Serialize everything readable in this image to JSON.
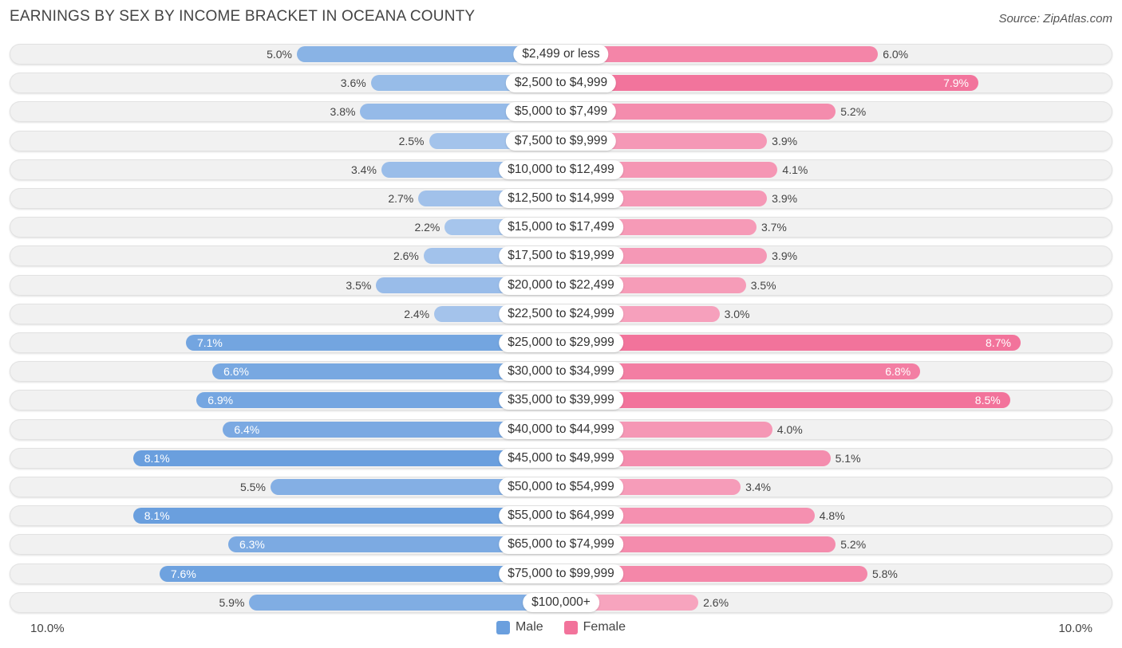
{
  "title": "EARNINGS BY SEX BY INCOME BRACKET IN OCEANA COUNTY",
  "source": "Source: ZipAtlas.com",
  "colors": {
    "male_light": "#a8c6ec",
    "male_dark": "#6a9fde",
    "female_light": "#f7a9c2",
    "female_dark": "#f2739b"
  },
  "chart_data": {
    "type": "bar",
    "orientation": "horizontal-diverging",
    "title": "EARNINGS BY SEX BY INCOME BRACKET IN OCEANA COUNTY",
    "categories": [
      "$2,499 or less",
      "$2,500 to $4,999",
      "$5,000 to $7,499",
      "$7,500 to $9,999",
      "$10,000 to $12,499",
      "$12,500 to $14,999",
      "$15,000 to $17,499",
      "$17,500 to $19,999",
      "$20,000 to $22,499",
      "$22,500 to $24,999",
      "$25,000 to $29,999",
      "$30,000 to $34,999",
      "$35,000 to $39,999",
      "$40,000 to $44,999",
      "$45,000 to $49,999",
      "$50,000 to $54,999",
      "$55,000 to $64,999",
      "$65,000 to $74,999",
      "$75,000 to $99,999",
      "$100,000+"
    ],
    "series": [
      {
        "name": "Male",
        "values": [
          5.0,
          3.6,
          3.8,
          2.5,
          3.4,
          2.7,
          2.2,
          2.6,
          3.5,
          2.4,
          7.1,
          6.6,
          6.9,
          6.4,
          8.1,
          5.5,
          8.1,
          6.3,
          7.6,
          5.9
        ],
        "labels": [
          "5.0%",
          "3.6%",
          "3.8%",
          "2.5%",
          "3.4%",
          "2.7%",
          "2.2%",
          "2.6%",
          "3.5%",
          "2.4%",
          "7.1%",
          "6.6%",
          "6.9%",
          "6.4%",
          "8.1%",
          "5.5%",
          "8.1%",
          "6.3%",
          "7.6%",
          "5.9%"
        ]
      },
      {
        "name": "Female",
        "values": [
          6.0,
          7.9,
          5.2,
          3.9,
          4.1,
          3.9,
          3.7,
          3.9,
          3.5,
          3.0,
          8.7,
          6.8,
          8.5,
          4.0,
          5.1,
          3.4,
          4.8,
          5.2,
          5.8,
          2.6
        ],
        "labels": [
          "6.0%",
          "7.9%",
          "5.2%",
          "3.9%",
          "4.1%",
          "3.9%",
          "3.7%",
          "3.9%",
          "3.5%",
          "3.0%",
          "8.7%",
          "6.8%",
          "8.5%",
          "4.0%",
          "5.1%",
          "3.4%",
          "4.8%",
          "5.2%",
          "5.8%",
          "2.6%"
        ]
      }
    ],
    "xlim": [
      0,
      10.0
    ],
    "axis_left_label": "10.0%",
    "axis_right_label": "10.0%",
    "legend": [
      "Male",
      "Female"
    ],
    "legend_position": "bottom-center"
  }
}
